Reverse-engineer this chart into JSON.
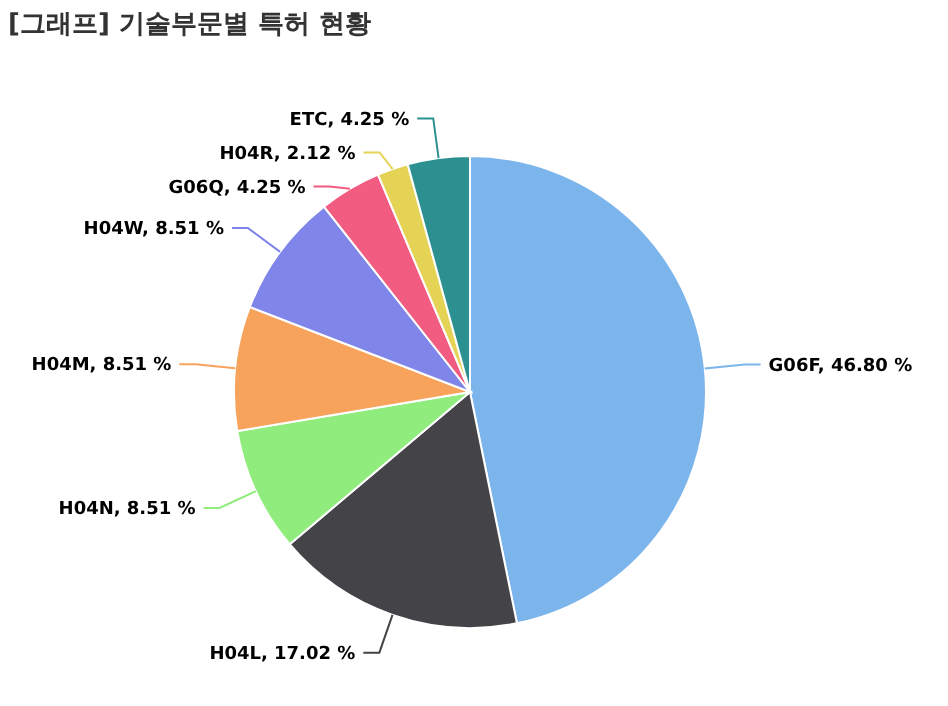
{
  "chart_data": {
    "type": "pie",
    "title": "[그래프] 기술부문별 특허 현황",
    "categories": [
      "G06F",
      "H04L",
      "H04N",
      "H04M",
      "H04W",
      "G06Q",
      "H04R",
      "ETC"
    ],
    "values": [
      46.8,
      17.02,
      8.51,
      8.51,
      8.51,
      4.25,
      2.12,
      4.25
    ],
    "value_labels": [
      "46.80 %",
      "17.02 %",
      "8.51 %",
      "8.51 %",
      "8.51 %",
      "4.25 %",
      "2.12 %",
      "4.25 %"
    ],
    "colors": [
      "#7cb5ec",
      "#434348",
      "#90ed7d",
      "#f7a35c",
      "#8085e9",
      "#f15c80",
      "#e4d354",
      "#2b908f"
    ]
  }
}
